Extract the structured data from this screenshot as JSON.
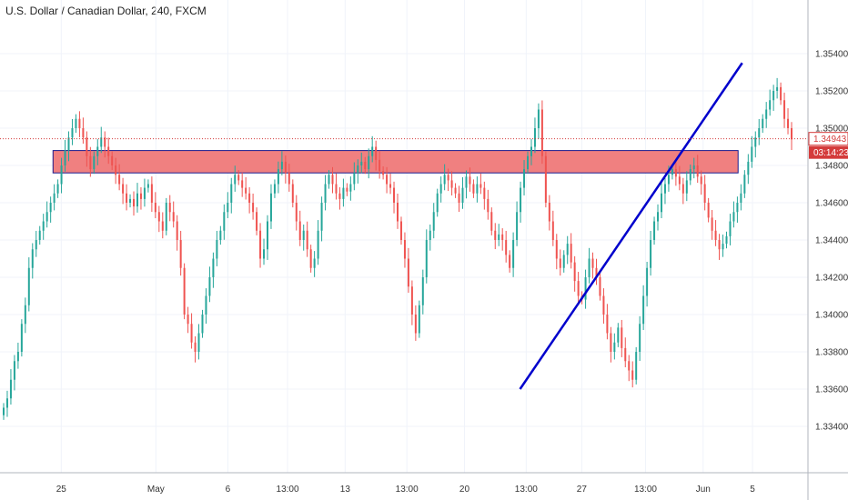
{
  "header": {
    "title": "U.S. Dollar / Canadian Dollar, 240, FXCM"
  },
  "colors": {
    "up": "#26a69a",
    "down": "#ef5350",
    "trendline": "#0000cc",
    "zone_fill": "#f08080",
    "zone_border": "#1a1a8c",
    "last_price": "#d43b3b"
  },
  "chart_data": {
    "type": "candlestick",
    "title": "U.S. Dollar / Canadian Dollar, 240, FXCM",
    "ylim": [
      1.332,
      1.356
    ],
    "y_ticks": [
      "1.33400",
      "1.33600",
      "1.33800",
      "1.34000",
      "1.34200",
      "1.34400",
      "1.34600",
      "1.34800",
      "1.35000",
      "1.35200",
      "1.35400"
    ],
    "x_ticks": [
      "25",
      "May",
      "6",
      "13:00",
      "13",
      "13:00",
      "20",
      "13:00",
      "27",
      "13:00",
      "Jun",
      "5"
    ],
    "x_tick_index": [
      28,
      74,
      109,
      138,
      166,
      196,
      224,
      254,
      281,
      312,
      340,
      364
    ],
    "last_price": "1.34943",
    "countdown": "03:14:23",
    "resistance_zone": {
      "top": 1.3488,
      "bottom": 1.3476
    },
    "trendline": {
      "start": {
        "index": 251,
        "price": 1.336
      },
      "end": {
        "index": 359,
        "price": 1.3535
      }
    },
    "index_range": [
      0,
      383
    ],
    "closes": [
      1.335,
      1.3355,
      1.3365,
      1.3375,
      1.338,
      1.3395,
      1.3405,
      1.3425,
      1.3435,
      1.344,
      1.3445,
      1.345,
      1.3455,
      1.346,
      1.3465,
      1.347,
      1.348,
      1.3488,
      1.3495,
      1.35,
      1.3505,
      1.35,
      1.3495,
      1.3485,
      1.3478,
      1.3485,
      1.349,
      1.3495,
      1.349,
      1.3485,
      1.348,
      1.3475,
      1.347,
      1.3465,
      1.346,
      1.3462,
      1.3458,
      1.3465,
      1.3462,
      1.3468,
      1.347,
      1.346,
      1.3455,
      1.345,
      1.3445,
      1.346,
      1.3455,
      1.345,
      1.344,
      1.3425,
      1.34,
      1.3395,
      1.3385,
      1.338,
      1.339,
      1.34,
      1.341,
      1.342,
      1.343,
      1.344,
      1.3445,
      1.3455,
      1.346,
      1.347,
      1.3475,
      1.3472,
      1.3468,
      1.3465,
      1.346,
      1.3455,
      1.3445,
      1.343,
      1.3435,
      1.345,
      1.3465,
      1.347,
      1.3478,
      1.3482,
      1.3476,
      1.347,
      1.346,
      1.345,
      1.344,
      1.3445,
      1.3435,
      1.3425,
      1.343,
      1.3445,
      1.346,
      1.347,
      1.3475,
      1.347,
      1.3465,
      1.3462,
      1.3468,
      1.3466,
      1.347,
      1.3476,
      1.348,
      1.3482,
      1.3478,
      1.3485,
      1.349,
      1.3483,
      1.3477,
      1.3475,
      1.347,
      1.3468,
      1.346,
      1.345,
      1.344,
      1.343,
      1.3415,
      1.34,
      1.339,
      1.3405,
      1.342,
      1.344,
      1.3445,
      1.3455,
      1.3465,
      1.347,
      1.3475,
      1.3472,
      1.3468,
      1.3465,
      1.346,
      1.3468,
      1.3474,
      1.347,
      1.3465,
      1.347,
      1.3468,
      1.3462,
      1.3455,
      1.3445,
      1.344,
      1.3443,
      1.344,
      1.3432,
      1.3425,
      1.344,
      1.3455,
      1.3468,
      1.3478,
      1.3485,
      1.349,
      1.35,
      1.351,
      1.3485,
      1.346,
      1.345,
      1.344,
      1.343,
      1.3425,
      1.3432,
      1.3438,
      1.3428,
      1.3418,
      1.341,
      1.3408,
      1.342,
      1.343,
      1.3425,
      1.342,
      1.341,
      1.34,
      1.339,
      1.338,
      1.3385,
      1.3393,
      1.3382,
      1.3375,
      1.337,
      1.3365,
      1.338,
      1.3395,
      1.341,
      1.3425,
      1.344,
      1.345,
      1.3455,
      1.3465,
      1.347,
      1.3475,
      1.3478,
      1.3474,
      1.347,
      1.3465,
      1.3472,
      1.3478,
      1.348,
      1.3474,
      1.347,
      1.346,
      1.3452,
      1.3445,
      1.344,
      1.3435,
      1.3438,
      1.3442,
      1.345,
      1.3455,
      1.346,
      1.3465,
      1.3475,
      1.3482,
      1.349,
      1.3495,
      1.35,
      1.3505,
      1.351,
      1.3515,
      1.352,
      1.3522,
      1.3515,
      1.3505,
      1.35,
      1.3494
    ],
    "series": [
      {
        "name": "USDCAD",
        "values": [
          1.335,
          1.3355,
          1.3365,
          1.3375,
          1.338,
          1.3395,
          1.3405,
          1.3425,
          1.3435,
          1.344,
          1.3445,
          1.345,
          1.3455,
          1.346,
          1.3465,
          1.347,
          1.348,
          1.3488,
          1.3495,
          1.35,
          1.3505,
          1.35,
          1.3495,
          1.3485,
          1.3478,
          1.3485,
          1.349,
          1.3495,
          1.349,
          1.3485,
          1.348,
          1.3475,
          1.347,
          1.3465,
          1.346,
          1.3462,
          1.3458,
          1.3465,
          1.3462,
          1.3468,
          1.347,
          1.346,
          1.3455,
          1.345,
          1.3445,
          1.346,
          1.3455,
          1.345,
          1.344,
          1.3425,
          1.34,
          1.3395,
          1.3385,
          1.338,
          1.339,
          1.34,
          1.341,
          1.342,
          1.343,
          1.344,
          1.3445,
          1.3455,
          1.346,
          1.347,
          1.3475,
          1.3472,
          1.3468,
          1.3465,
          1.346,
          1.3455,
          1.3445,
          1.343,
          1.3435,
          1.345,
          1.3465,
          1.347,
          1.3478,
          1.3482,
          1.3476,
          1.347,
          1.346,
          1.345,
          1.344,
          1.3445,
          1.3435,
          1.3425,
          1.343,
          1.3445,
          1.346,
          1.347,
          1.3475,
          1.347,
          1.3465,
          1.3462,
          1.3468,
          1.3466,
          1.347,
          1.3476,
          1.348,
          1.3482,
          1.3478,
          1.3485,
          1.349,
          1.3483,
          1.3477,
          1.3475,
          1.347,
          1.3468,
          1.346,
          1.345,
          1.344,
          1.343,
          1.3415,
          1.34,
          1.339,
          1.3405,
          1.342,
          1.344,
          1.3445,
          1.3455,
          1.3465,
          1.347,
          1.3475,
          1.3472,
          1.3468,
          1.3465,
          1.346,
          1.3468,
          1.3474,
          1.347,
          1.3465,
          1.347,
          1.3468,
          1.3462,
          1.3455,
          1.3445,
          1.344,
          1.3443,
          1.344,
          1.3432,
          1.3425,
          1.344,
          1.3455,
          1.3468,
          1.3478,
          1.3485,
          1.349,
          1.35,
          1.351,
          1.3485,
          1.346,
          1.345,
          1.344,
          1.343,
          1.3425,
          1.3432,
          1.3438,
          1.3428,
          1.3418,
          1.341,
          1.3408,
          1.342,
          1.343,
          1.3425,
          1.342,
          1.341,
          1.34,
          1.339,
          1.338,
          1.3385,
          1.3393,
          1.3382,
          1.3375,
          1.337,
          1.3365,
          1.338,
          1.3395,
          1.341,
          1.3425,
          1.344,
          1.345,
          1.3455,
          1.3465,
          1.347,
          1.3475,
          1.3478,
          1.3474,
          1.347,
          1.3465,
          1.3472,
          1.3478,
          1.348,
          1.3474,
          1.347,
          1.346,
          1.3452,
          1.3445,
          1.344,
          1.3435,
          1.3438,
          1.3442,
          1.345,
          1.3455,
          1.346,
          1.3465,
          1.3475,
          1.3482,
          1.349,
          1.3495,
          1.35,
          1.3505,
          1.351,
          1.3515,
          1.352,
          1.3522,
          1.3515,
          1.3505,
          1.35,
          1.3494
        ]
      }
    ]
  }
}
